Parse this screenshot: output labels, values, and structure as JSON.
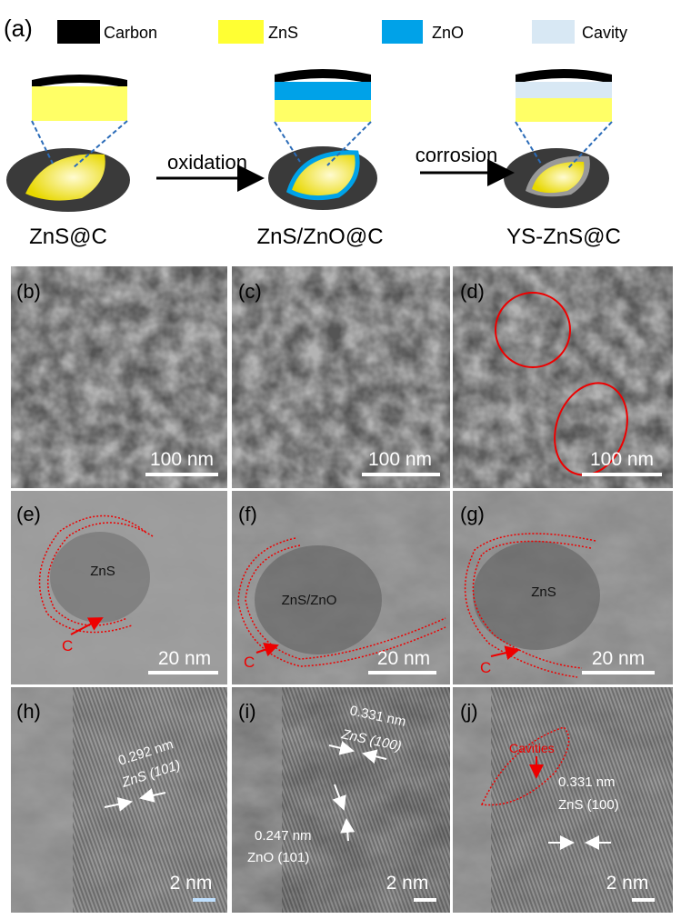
{
  "figure": {
    "label": "(a)",
    "legend": [
      "Carbon",
      "ZnS",
      "ZnO",
      "Cavity"
    ],
    "steps": [
      "oxidation",
      "corrosion"
    ],
    "stages": [
      "ZnS@C",
      "ZnS/ZnO@C",
      "YS-ZnS@C"
    ]
  },
  "panels": [
    {
      "label": "(b)",
      "scale": "100 nm"
    },
    {
      "label": "(c)",
      "scale": "100 nm"
    },
    {
      "label": "(d)",
      "scale": "100 nm"
    },
    {
      "label": "(e)",
      "scale": "20 nm",
      "annotations": [
        "ZnS",
        "C"
      ]
    },
    {
      "label": "(f)",
      "scale": "20 nm",
      "annotations": [
        "ZnS/ZnO",
        "C"
      ]
    },
    {
      "label": "(g)",
      "scale": "20 nm",
      "annotations": [
        "ZnS",
        "C"
      ]
    },
    {
      "label": "(h)",
      "scale": "2 nm",
      "annotations": [
        "0.292 nm",
        "ZnS (101)"
      ]
    },
    {
      "label": "(i)",
      "scale": "2 nm",
      "annotations": [
        "0.331 nm",
        "ZnS (100)",
        "0.247 nm",
        "ZnO (101)"
      ]
    },
    {
      "label": "(j)",
      "scale": "2 nm",
      "annotations": [
        "Cavities",
        "0.331 nm",
        "ZnS (100)"
      ]
    }
  ]
}
